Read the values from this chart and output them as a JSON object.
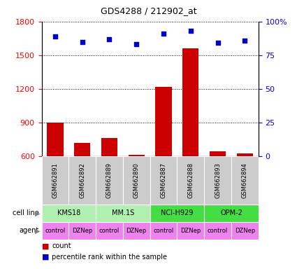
{
  "title": "GDS4288 / 212902_at",
  "samples": [
    "GSM662891",
    "GSM662892",
    "GSM662889",
    "GSM662890",
    "GSM662887",
    "GSM662888",
    "GSM662893",
    "GSM662894"
  ],
  "counts": [
    900,
    720,
    760,
    608,
    1215,
    1560,
    645,
    625
  ],
  "percentile_ranks": [
    89,
    85,
    87,
    83,
    91,
    93,
    84,
    86
  ],
  "ylim_left": [
    600,
    1800
  ],
  "ylim_right": [
    0,
    100
  ],
  "yticks_left": [
    600,
    900,
    1200,
    1500,
    1800
  ],
  "yticks_right": [
    0,
    25,
    50,
    75,
    100
  ],
  "yticklabels_right": [
    "0",
    "25",
    "50",
    "75",
    "100%"
  ],
  "bar_color": "#cc0000",
  "scatter_color": "#0000cc",
  "cell_lines": [
    {
      "label": "KMS18",
      "span": [
        0,
        2
      ],
      "color": "#b0f0b0"
    },
    {
      "label": "MM.1S",
      "span": [
        2,
        4
      ],
      "color": "#b0f0b0"
    },
    {
      "label": "NCI-H929",
      "span": [
        4,
        6
      ],
      "color": "#44dd44"
    },
    {
      "label": "OPM-2",
      "span": [
        6,
        8
      ],
      "color": "#44dd44"
    }
  ],
  "agents": [
    "control",
    "DZNep",
    "control",
    "DZNep",
    "control",
    "DZNep",
    "control",
    "DZNep"
  ],
  "agent_color": "#ee82ee",
  "sample_box_color": "#cccccc",
  "cell_line_label": "cell line",
  "agent_label": "agent",
  "legend_count_color": "#cc0000",
  "legend_percentile_color": "#0000cc",
  "grid_color": "black",
  "grid_style": "dotted"
}
